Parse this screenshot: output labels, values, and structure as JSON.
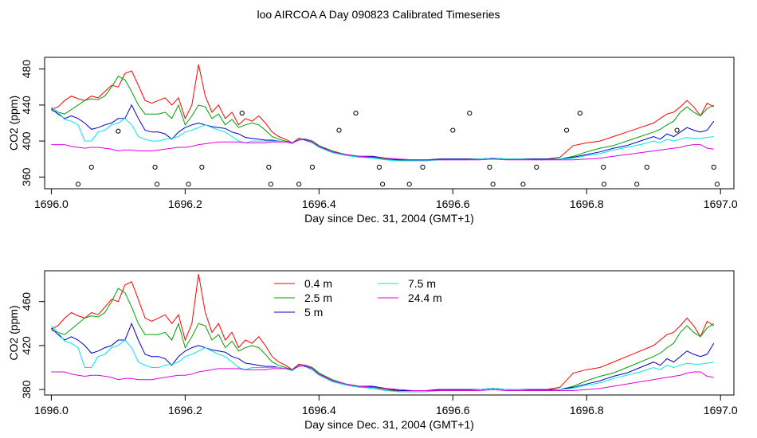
{
  "title": "loo AIRCOA A  Day 090823  Calibrated Timeseries",
  "colors": {
    "0.4 m": "#ff0000",
    "2.5 m": "#00a000",
    "5 m": "#0000c8",
    "7.5 m": "#00e5e5",
    "24.4 m": "#e000e0"
  },
  "chart_data": [
    {
      "type": "line",
      "panel": "top",
      "xlabel": "Day since Dec. 31, 2004 (GMT+1)",
      "ylabel": "CO2 (ppm)",
      "xlim": [
        1695.99,
        1697.02
      ],
      "ylim": [
        347,
        493
      ],
      "xticks": [
        1696.0,
        1696.2,
        1696.4,
        1696.6,
        1696.8,
        1697.0
      ],
      "xtick_labels": [
        "1696.0",
        "1696.2",
        "1696.4",
        "1696.6",
        "1696.8",
        "1697.0"
      ],
      "yticks": [
        360,
        400,
        440,
        480
      ],
      "ytick_labels": [
        "360",
        "400",
        "440",
        "480"
      ],
      "grid": false,
      "legend": false,
      "series_ref": "chart_data.1.series",
      "markers": {
        "name": "",
        "x": [
          1696.04,
          1696.06,
          1696.1,
          1696.155,
          1696.158,
          1696.205,
          1696.225,
          1696.285,
          1696.325,
          1696.328,
          1696.37,
          1696.39,
          1696.43,
          1696.455,
          1696.49,
          1696.495,
          1696.535,
          1696.555,
          1696.6,
          1696.625,
          1696.655,
          1696.66,
          1696.705,
          1696.725,
          1696.77,
          1696.79,
          1696.825,
          1696.826,
          1696.875,
          1696.89,
          1696.935,
          1696.99,
          1696.995
        ],
        "y": [
          352,
          371,
          411,
          371,
          352,
          352,
          371,
          431,
          371,
          352,
          352,
          371,
          412,
          431,
          371,
          352,
          352,
          371,
          412,
          431,
          371,
          352,
          352,
          371,
          412,
          431,
          371,
          352,
          352,
          371,
          412,
          371,
          352
        ]
      }
    },
    {
      "type": "line",
      "panel": "bottom",
      "xlabel": "Day since Dec. 31, 2004 (GMT+1)",
      "ylabel": "CO2 (ppm)",
      "xlim": [
        1695.99,
        1697.02
      ],
      "ylim": [
        375,
        488
      ],
      "xticks": [
        1696.0,
        1696.2,
        1696.4,
        1696.6,
        1696.8,
        1697.0
      ],
      "xtick_labels": [
        "1696.0",
        "1696.2",
        "1696.4",
        "1696.6",
        "1696.8",
        "1697.0"
      ],
      "yticks": [
        380,
        420,
        460
      ],
      "ytick_labels": [
        "380",
        "420",
        "460"
      ],
      "grid": false,
      "legend": "top-left",
      "legend_entries": [
        "0.4 m",
        "2.5 m",
        "5 m",
        "7.5 m",
        "24.4 m"
      ],
      "x": [
        1696.0,
        1696.01,
        1696.02,
        1696.03,
        1696.04,
        1696.05,
        1696.06,
        1696.07,
        1696.08,
        1696.09,
        1696.1,
        1696.11,
        1696.12,
        1696.13,
        1696.14,
        1696.15,
        1696.16,
        1696.17,
        1696.18,
        1696.19,
        1696.2,
        1696.21,
        1696.22,
        1696.23,
        1696.24,
        1696.25,
        1696.26,
        1696.27,
        1696.28,
        1696.29,
        1696.3,
        1696.31,
        1696.32,
        1696.33,
        1696.34,
        1696.35,
        1696.36,
        1696.37,
        1696.38,
        1696.39,
        1696.4,
        1696.42,
        1696.44,
        1696.46,
        1696.48,
        1696.5,
        1696.52,
        1696.54,
        1696.56,
        1696.58,
        1696.6,
        1696.62,
        1696.64,
        1696.66,
        1696.68,
        1696.7,
        1696.72,
        1696.74,
        1696.76,
        1696.78,
        1696.8,
        1696.82,
        1696.84,
        1696.86,
        1696.88,
        1696.9,
        1696.91,
        1696.92,
        1696.93,
        1696.94,
        1696.95,
        1696.96,
        1696.97,
        1696.98,
        1696.99
      ],
      "series": [
        {
          "name": "0.4 m",
          "values": [
            435,
            438,
            445,
            450,
            447,
            445,
            450,
            448,
            455,
            462,
            460,
            475,
            478,
            462,
            445,
            442,
            445,
            448,
            440,
            448,
            425,
            440,
            485,
            450,
            432,
            440,
            425,
            432,
            418,
            425,
            422,
            428,
            420,
            410,
            405,
            402,
            398,
            403,
            402,
            400,
            395,
            388,
            385,
            382,
            382,
            380,
            378,
            378,
            378,
            380,
            380,
            380,
            380,
            381,
            380,
            380,
            380,
            380,
            382,
            395,
            398,
            400,
            405,
            410,
            415,
            420,
            425,
            430,
            432,
            438,
            445,
            438,
            428,
            442,
            438
          ]
        },
        {
          "name": "2.5 m",
          "values": [
            434,
            432,
            430,
            435,
            440,
            445,
            447,
            446,
            450,
            460,
            472,
            468,
            455,
            440,
            430,
            430,
            430,
            432,
            425,
            440,
            418,
            428,
            440,
            438,
            425,
            430,
            418,
            424,
            415,
            418,
            420,
            418,
            412,
            405,
            402,
            400,
            398,
            402,
            402,
            400,
            395,
            389,
            385,
            382,
            382,
            380,
            379,
            379,
            379,
            380,
            380,
            380,
            380,
            381,
            380,
            380,
            380,
            380,
            380,
            383,
            388,
            392,
            395,
            400,
            405,
            410,
            413,
            418,
            422,
            432,
            438,
            432,
            428,
            436,
            440
          ]
        },
        {
          "name": "5 m",
          "values": [
            436,
            430,
            425,
            428,
            425,
            420,
            413,
            415,
            418,
            420,
            425,
            425,
            440,
            425,
            412,
            410,
            410,
            408,
            402,
            410,
            415,
            418,
            420,
            418,
            416,
            415,
            414,
            410,
            408,
            404,
            403,
            402,
            401,
            401,
            400,
            399,
            398,
            402,
            401,
            398,
            394,
            388,
            385,
            383,
            383,
            381,
            379,
            379,
            379,
            380,
            380,
            380,
            380,
            381,
            380,
            380,
            380,
            380,
            380,
            382,
            385,
            388,
            392,
            395,
            400,
            405,
            402,
            408,
            405,
            410,
            415,
            412,
            410,
            412,
            422
          ]
        },
        {
          "name": "7.5 m",
          "values": [
            438,
            432,
            424,
            422,
            418,
            400,
            400,
            410,
            412,
            418,
            420,
            425,
            418,
            405,
            402,
            400,
            400,
            402,
            403,
            405,
            410,
            412,
            415,
            418,
            415,
            412,
            410,
            405,
            400,
            398,
            400,
            400,
            400,
            400,
            400,
            399,
            397,
            402,
            402,
            398,
            393,
            387,
            384,
            382,
            381,
            379,
            378,
            378,
            378,
            379,
            379,
            379,
            380,
            381,
            380,
            380,
            379,
            379,
            380,
            381,
            384,
            386,
            390,
            393,
            396,
            400,
            398,
            402,
            400,
            402,
            404,
            403,
            403,
            404,
            405
          ]
        },
        {
          "name": "24.4 m",
          "values": [
            396,
            396,
            396,
            394,
            393,
            392,
            393,
            393,
            392,
            391,
            389,
            390,
            390,
            389,
            389,
            389,
            390,
            391,
            392,
            393,
            393,
            394,
            396,
            397,
            398,
            399,
            399,
            399,
            399,
            398,
            398,
            398,
            398,
            399,
            399,
            399,
            398,
            401,
            402,
            399,
            394,
            388,
            385,
            383,
            382,
            381,
            380,
            379,
            379,
            379,
            379,
            379,
            379,
            380,
            379,
            379,
            379,
            379,
            379,
            379,
            380,
            381,
            383,
            385,
            387,
            389,
            390,
            391,
            392,
            393,
            395,
            396,
            396,
            392,
            391
          ]
        }
      ]
    }
  ]
}
